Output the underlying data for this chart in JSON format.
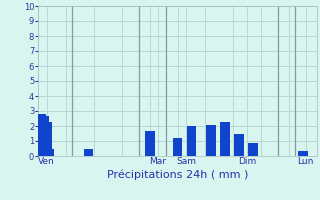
{
  "title": "",
  "xlabel": "Précipitations 24h ( mm )",
  "background_color": "#d8f5f0",
  "grid_color": "#b8d8d4",
  "bar_color": "#1144cc",
  "ylim": [
    0,
    10
  ],
  "yticks": [
    0,
    1,
    2,
    3,
    4,
    5,
    6,
    7,
    8,
    9,
    10
  ],
  "day_labels": [
    "Ven",
    "Mar",
    "Sam",
    "Dim",
    "Lun"
  ],
  "bar_positions": [
    1,
    2,
    3,
    4,
    18,
    40,
    50,
    55,
    62,
    67,
    72,
    77,
    95
  ],
  "bar_heights": [
    2.8,
    2.7,
    2.3,
    0.5,
    0.5,
    1.7,
    1.2,
    2.0,
    2.1,
    2.3,
    1.5,
    0.9,
    0.35
  ],
  "day_line_x": [
    12,
    36,
    46,
    86,
    92
  ],
  "total_slots": 100,
  "bar_width": 3.5,
  "xtick_positions": [
    3,
    43,
    53,
    75,
    96
  ]
}
